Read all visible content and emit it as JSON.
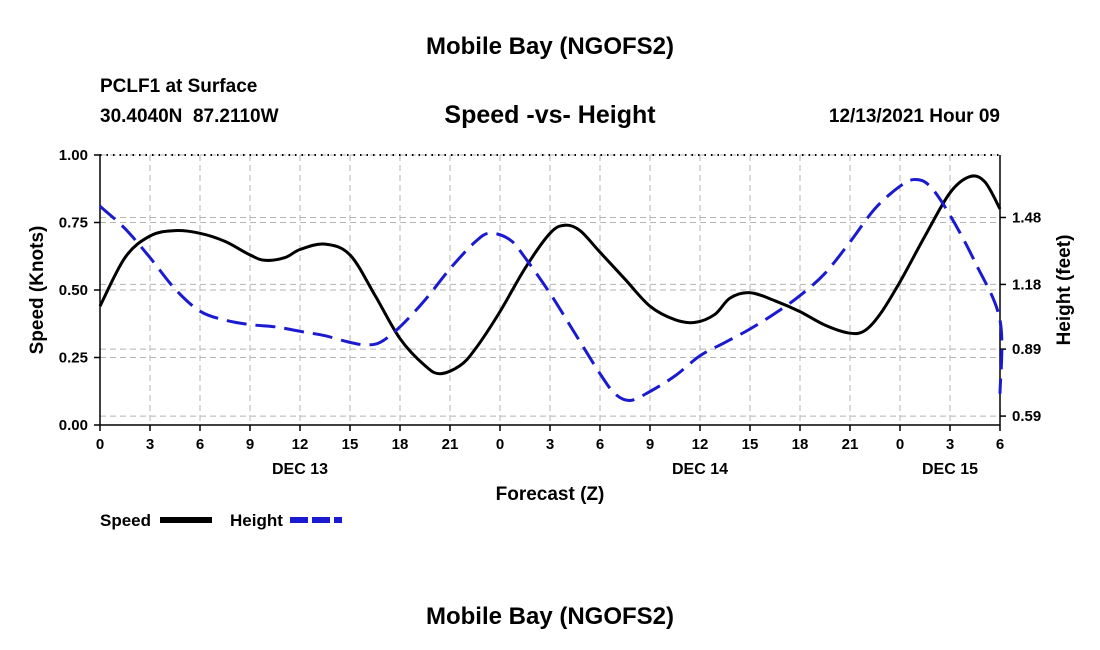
{
  "page_title": "Mobile Bay (NGOFS2)",
  "station": "PCLF1 at Surface",
  "coordinates": "30.4040N  87.2110W",
  "plot_subtitle": "Speed -vs- Height",
  "timestamp": "12/13/2021 Hour 09",
  "footer_title": "Mobile Bay (NGOFS2)",
  "colors": {
    "speed": "#000000",
    "height": "#1a1ad0",
    "grid": "#b4b4b4"
  },
  "chart_data": {
    "type": "line",
    "title": "Speed -vs- Height",
    "xlabel": "Forecast (Z)",
    "ylabel": "Speed (Knots)",
    "y2label": "Height (feet)",
    "grid": true,
    "legend_placement": "bottom-left",
    "x": [
      0,
      1,
      2,
      3,
      4,
      5,
      6,
      7,
      8,
      9,
      10,
      11,
      12,
      13,
      14,
      15,
      16,
      17,
      18
    ],
    "x_tick_labels": [
      "0",
      "3",
      "6",
      "9",
      "12",
      "15",
      "18",
      "21",
      "0",
      "3",
      "6",
      "9",
      "12",
      "15",
      "18",
      "21",
      "0",
      "3",
      "6"
    ],
    "day_labels": [
      {
        "label": "DEC 13",
        "tick_index": 4
      },
      {
        "label": "DEC 14",
        "tick_index": 12
      },
      {
        "label": "DEC 15",
        "tick_index": 17
      }
    ],
    "ylim": [
      0,
      1.0
    ],
    "yticks": [
      0,
      0.25,
      0.5,
      0.75,
      1.0
    ],
    "ytick_labels": [
      "0.00",
      "0.25",
      "0.50",
      "0.75",
      "1.00"
    ],
    "y2lim": [
      0.55,
      1.76
    ],
    "y2ticks": [
      0.59,
      0.89,
      1.18,
      1.48
    ],
    "y2tick_labels": [
      "0.59",
      "0.89",
      "1.18",
      "1.48"
    ],
    "series": [
      {
        "name": "Speed",
        "axis": "left",
        "style": "solid",
        "points": [
          [
            0,
            0.44
          ],
          [
            0.5,
            0.62
          ],
          [
            1,
            0.7
          ],
          [
            1.5,
            0.72
          ],
          [
            2,
            0.71
          ],
          [
            2.5,
            0.68
          ],
          [
            3,
            0.63
          ],
          [
            3.3,
            0.61
          ],
          [
            3.7,
            0.62
          ],
          [
            4,
            0.65
          ],
          [
            4.5,
            0.67
          ],
          [
            5,
            0.63
          ],
          [
            5.5,
            0.48
          ],
          [
            6,
            0.32
          ],
          [
            6.5,
            0.22
          ],
          [
            6.8,
            0.19
          ],
          [
            7.2,
            0.22
          ],
          [
            7.5,
            0.28
          ],
          [
            8,
            0.42
          ],
          [
            8.5,
            0.58
          ],
          [
            9,
            0.71
          ],
          [
            9.3,
            0.74
          ],
          [
            9.6,
            0.72
          ],
          [
            10,
            0.64
          ],
          [
            10.5,
            0.54
          ],
          [
            11,
            0.44
          ],
          [
            11.5,
            0.39
          ],
          [
            11.9,
            0.38
          ],
          [
            12.3,
            0.41
          ],
          [
            12.6,
            0.47
          ],
          [
            13,
            0.49
          ],
          [
            13.5,
            0.46
          ],
          [
            14,
            0.42
          ],
          [
            14.5,
            0.37
          ],
          [
            15,
            0.34
          ],
          [
            15.3,
            0.35
          ],
          [
            15.6,
            0.41
          ],
          [
            16,
            0.53
          ],
          [
            16.5,
            0.7
          ],
          [
            17,
            0.86
          ],
          [
            17.4,
            0.92
          ],
          [
            17.7,
            0.9
          ],
          [
            18,
            0.8
          ]
        ]
      },
      {
        "name": "Height",
        "axis": "right",
        "style": "dashed",
        "points": [
          [
            0,
            1.53
          ],
          [
            0.5,
            1.43
          ],
          [
            1,
            1.3
          ],
          [
            1.5,
            1.16
          ],
          [
            2,
            1.06
          ],
          [
            2.5,
            1.02
          ],
          [
            3,
            1.0
          ],
          [
            3.5,
            0.99
          ],
          [
            4,
            0.97
          ],
          [
            4.5,
            0.95
          ],
          [
            5,
            0.92
          ],
          [
            5.3,
            0.91
          ],
          [
            5.6,
            0.92
          ],
          [
            6,
            0.99
          ],
          [
            6.5,
            1.11
          ],
          [
            7,
            1.25
          ],
          [
            7.5,
            1.37
          ],
          [
            7.8,
            1.41
          ],
          [
            8.2,
            1.38
          ],
          [
            8.5,
            1.3
          ],
          [
            9,
            1.14
          ],
          [
            9.5,
            0.96
          ],
          [
            10,
            0.78
          ],
          [
            10.3,
            0.69
          ],
          [
            10.6,
            0.66
          ],
          [
            11,
            0.7
          ],
          [
            11.5,
            0.77
          ],
          [
            12,
            0.86
          ],
          [
            12.5,
            0.92
          ],
          [
            13,
            0.98
          ],
          [
            13.5,
            1.05
          ],
          [
            14,
            1.13
          ],
          [
            14.5,
            1.23
          ],
          [
            15,
            1.37
          ],
          [
            15.5,
            1.52
          ],
          [
            16,
            1.62
          ],
          [
            16.3,
            1.65
          ],
          [
            16.6,
            1.62
          ],
          [
            17,
            1.49
          ],
          [
            17.5,
            1.28
          ],
          [
            18,
            1.02
          ],
          [
            18,
            0.69
          ]
        ]
      }
    ]
  }
}
